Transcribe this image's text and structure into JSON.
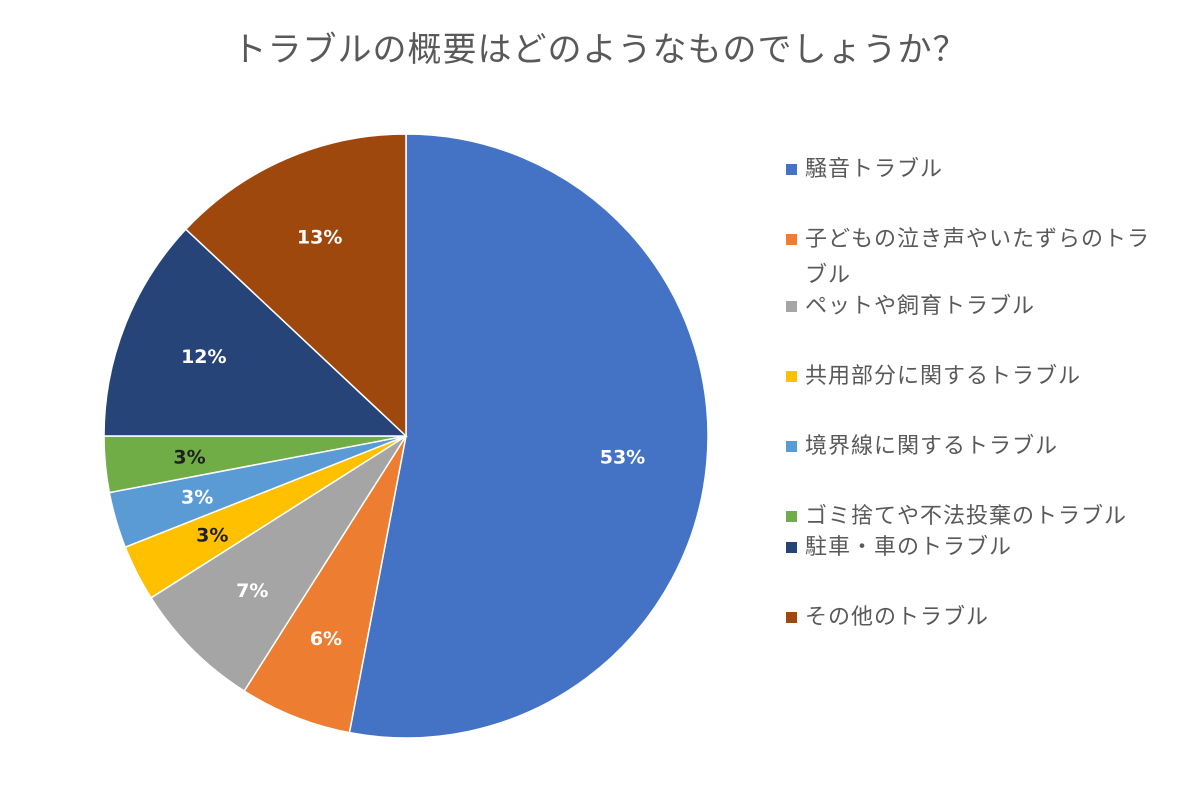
{
  "chart_data": {
    "type": "pie",
    "title": "トラブルの概要はどのようなものでしょうか？",
    "legend_position": "right",
    "slices": [
      {
        "label": "騒音トラブル",
        "value": 53,
        "display": "53%",
        "color": "#4472C4",
        "label_color": "#ffffff"
      },
      {
        "label": "子どもの泣き声やいたずらのトラブル",
        "value": 6,
        "display": "6%",
        "color": "#ED7D31",
        "label_color": "#ffffff"
      },
      {
        "label": "ペットや飼育トラブル",
        "value": 7,
        "display": "7%",
        "color": "#A5A5A5",
        "label_color": "#ffffff"
      },
      {
        "label": "共用部分に関するトラブル",
        "value": 3,
        "display": "3%",
        "color": "#FFC000",
        "label_color": "#1f1f1f"
      },
      {
        "label": "境界線に関するトラブル",
        "value": 3,
        "display": "3%",
        "color": "#5B9BD5",
        "label_color": "#ffffff"
      },
      {
        "label": "ゴミ捨てや不法投棄のトラブル",
        "value": 3,
        "display": "3%",
        "color": "#70AD47",
        "label_color": "#1f1f1f"
      },
      {
        "label": "駐車・車のトラブル",
        "value": 12,
        "display": "12%",
        "color": "#264478",
        "label_color": "#ffffff"
      },
      {
        "label": "その他のトラブル",
        "value": 13,
        "display": "13%",
        "color": "#9E480E",
        "label_color": "#ffffff"
      }
    ]
  }
}
